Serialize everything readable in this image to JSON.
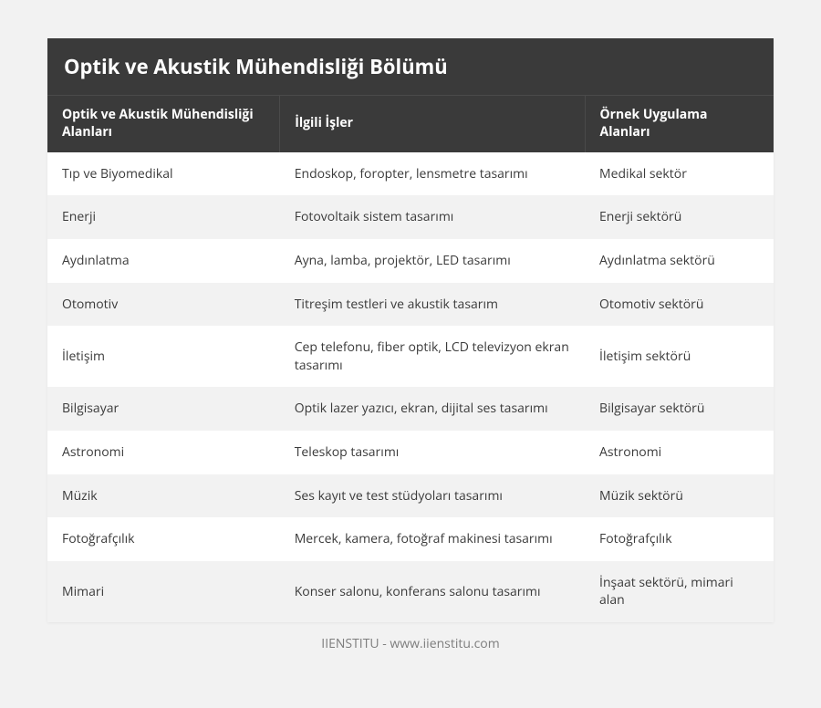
{
  "title": "Optik ve Akustik Mühendisliği Bölümü",
  "columns": {
    "a": "Optik ve Akustik Mühendisliği Alanları",
    "b": "İlgili İşler",
    "c": "Örnek Uygulama Alanları"
  },
  "rows": [
    {
      "a": "Tıp ve Biyomedikal",
      "b": "Endoskop, foropter, lensmetre tasarımı",
      "c": "Medikal sektör"
    },
    {
      "a": "Enerji",
      "b": "Fotovoltaik sistem tasarımı",
      "c": "Enerji sektörü"
    },
    {
      "a": "Aydınlatma",
      "b": "Ayna, lamba, projektör, LED tasarımı",
      "c": "Aydınlatma sektörü"
    },
    {
      "a": "Otomotiv",
      "b": "Titreşim testleri ve akustik tasarım",
      "c": "Otomotiv sektörü"
    },
    {
      "a": "İletişim",
      "b": "Cep telefonu, fiber optik, LCD televizyon ekran tasarımı",
      "c": "İletişim sektörü"
    },
    {
      "a": "Bilgisayar",
      "b": "Optik lazer yazıcı, ekran, dijital ses tasarımı",
      "c": "Bilgisayar sektörü"
    },
    {
      "a": "Astronomi",
      "b": "Teleskop tasarımı",
      "c": "Astronomi"
    },
    {
      "a": "Müzik",
      "b": "Ses kayıt ve test stüdyoları tasarımı",
      "c": "Müzik sektörü"
    },
    {
      "a": "Fotoğrafçılık",
      "b": "Mercek, kamera, fotoğraf makinesi tasarımı",
      "c": "Fotoğrafçılık"
    },
    {
      "a": "Mimari",
      "b": "Konser salonu, konferans salonu tasarımı",
      "c": "İnşaat sektörü, mimari alan"
    }
  ],
  "footer": "IIENSTITU - www.iienstitu.com",
  "style": {
    "page_background": "#f2f2f2",
    "header_background": "#3a3a3a",
    "header_text_color": "#ffffff",
    "header_divider_color": "#4a4a4a",
    "row_odd_background": "#ffffff",
    "row_even_background": "#f2f2f2",
    "body_text_color": "#3a3a3a",
    "footer_text_color": "#7d7d7d",
    "title_font_size_pt": 16,
    "header_font_size_pt": 10.5,
    "cell_font_size_pt": 10.5,
    "column_widths_pct": [
      32,
      42,
      26
    ]
  }
}
